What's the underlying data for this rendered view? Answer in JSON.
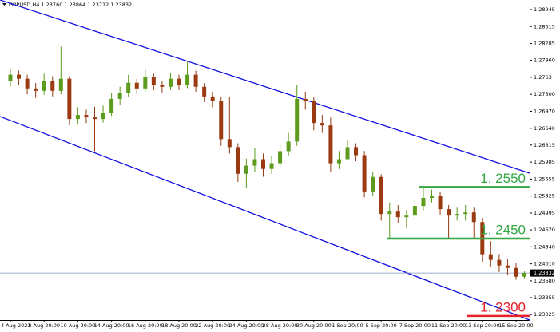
{
  "chart_data": {
    "type": "candlestick",
    "title": "GBPUSD,H4  1.23760 1.23864 1.23712 1.23832",
    "categories": [
      "4 Aug 2023",
      null,
      null,
      null,
      "8 Aug 20:00",
      null,
      null,
      null,
      "10 Aug 20:00",
      null,
      null,
      null,
      "14 Aug 20:00",
      null,
      null,
      null,
      "16 Aug 20:00",
      null,
      null,
      null,
      "18 Aug 20:00",
      null,
      null,
      null,
      "22 Aug 20:00",
      null,
      null,
      null,
      "24 Aug 20:00",
      null,
      null,
      null,
      "28 Aug 20:00",
      null,
      null,
      null,
      "30 Aug 20:00",
      null,
      null,
      null,
      "1 Sep 20:00",
      null,
      null,
      null,
      "5 Sep 20:00",
      null,
      null,
      null,
      "7 Sep 20:00",
      null,
      null,
      null,
      "11 Sep 20:00",
      null,
      null,
      null,
      "13 Sep 20:00",
      null,
      null,
      null,
      "15 Sep 20:00",
      null
    ],
    "open": [
      1.2756,
      1.2768,
      1.27602,
      1.27414,
      1.27367,
      1.27555,
      1.27367,
      1.27602,
      1.26821,
      1.26899,
      1.26852,
      1.26821,
      1.26946,
      1.27211,
      1.2732,
      1.27524,
      1.27414,
      1.27633,
      1.27477,
      1.27445,
      1.27602,
      1.27477,
      1.2768,
      1.27445,
      1.27258,
      1.27164,
      1.2643,
      1.26274,
      1.25758,
      1.25915,
      1.2604,
      1.25852,
      1.25962,
      1.26196,
      1.26383,
      1.27211,
      1.27164,
      1.26743,
      1.26696,
      1.25962,
      1.2604,
      1.26274,
      1.26118,
      1.25415,
      1.25696,
      1.24977,
      1.25024,
      1.24915,
      1.24946,
      1.25133,
      1.2529,
      1.25336,
      1.25071,
      1.24946,
      1.24977,
      1.25008,
      1.24821,
      1.24196,
      1.24087,
      1.23978,
      1.23931,
      1.2376
    ],
    "high": [
      1.2779,
      1.2776,
      1.2768,
      1.2752,
      1.277,
      1.2765,
      1.28226,
      1.2765,
      1.2705,
      1.27,
      1.2706,
      1.2708,
      1.2732,
      1.2745,
      1.2768,
      1.276,
      1.2778,
      1.277,
      1.2756,
      1.2772,
      1.2768,
      1.27945,
      1.2776,
      1.2752,
      1.2735,
      1.2725,
      1.2725,
      1.2635,
      1.2605,
      1.2625,
      1.2615,
      1.261,
      1.2633,
      1.2655,
      1.27477,
      1.2735,
      1.2725,
      1.269,
      1.2685,
      1.262,
      1.264,
      1.2635,
      1.262,
      1.258,
      1.2575,
      1.252,
      1.2515,
      1.2505,
      1.2525,
      1.255,
      1.2545,
      1.254,
      1.2515,
      1.251,
      1.2515,
      1.251,
      1.249,
      1.2445,
      1.242,
      1.241,
      1.2402,
      1.23864
    ],
    "low": [
      1.2745,
      1.2748,
      1.273,
      1.2723,
      1.2729,
      1.2726,
      1.273,
      1.267,
      1.2672,
      1.2674,
      1.26196,
      1.2675,
      1.2688,
      1.271,
      1.2725,
      1.273,
      1.2735,
      1.2738,
      1.2732,
      1.2738,
      1.2738,
      1.2742,
      1.2735,
      1.2715,
      1.2705,
      1.263,
      1.2615,
      1.256,
      1.2548,
      1.258,
      1.257,
      1.2575,
      1.2588,
      1.261,
      1.263,
      1.27,
      1.266,
      1.2655,
      1.258,
      1.2585,
      1.261,
      1.26,
      1.253,
      1.2533,
      1.2485,
      1.245,
      1.248,
      1.247,
      1.2485,
      1.2505,
      1.252,
      1.2495,
      1.245,
      1.2485,
      1.2485,
      1.245,
      1.2405,
      1.2395,
      1.2385,
      1.238,
      1.237,
      1.23712
    ],
    "close": [
      1.2768,
      1.27602,
      1.27414,
      1.27367,
      1.27555,
      1.27367,
      1.27602,
      1.26821,
      1.26899,
      1.26852,
      1.26821,
      1.26946,
      1.27211,
      1.2732,
      1.27524,
      1.27414,
      1.27633,
      1.27477,
      1.27445,
      1.27602,
      1.27477,
      1.2768,
      1.27445,
      1.27258,
      1.27164,
      1.2643,
      1.26274,
      1.25758,
      1.25915,
      1.2604,
      1.25852,
      1.25962,
      1.26196,
      1.26383,
      1.27211,
      1.27164,
      1.26743,
      1.26696,
      1.25962,
      1.2604,
      1.26274,
      1.26118,
      1.25415,
      1.25696,
      1.24977,
      1.25024,
      1.24915,
      1.24946,
      1.25133,
      1.2529,
      1.25336,
      1.25071,
      1.24946,
      1.24977,
      1.25008,
      1.24821,
      1.24196,
      1.24087,
      1.23978,
      1.23931,
      1.2376,
      1.23832
    ],
    "up_color": "#5c9b1c",
    "down_color": "#9a3a10",
    "ylim": [
      1.2292,
      1.2913
    ],
    "yticks": [
      1.28945,
      1.28615,
      1.28285,
      {
        "value": 1.2796,
        "label": "1.27960"
      },
      1.2763,
      {
        "value": 1.273,
        "label": "1.27300"
      },
      {
        "value": 1.2697,
        "label": "1.26970"
      },
      {
        "value": 1.2664,
        "label": "1.26640"
      },
      1.26315,
      1.25985,
      1.25655,
      1.25325,
      1.24995,
      {
        "value": 1.2467,
        "label": "1.24670"
      },
      {
        "value": 1.2434,
        "label": "1.24340"
      },
      {
        "value": 1.2401,
        "label": "1.24010"
      },
      {
        "value": 1.2368,
        "label": "1.23680"
      },
      1.23355,
      1.23025
    ],
    "last_price": 1.23832,
    "channel": {
      "color": "#1010e0",
      "upper": [
        1.2913,
        1.2577
      ],
      "lower": [
        1.2687,
        1.2292
      ]
    },
    "levels": [
      {
        "value": 1.255,
        "label": "1. 2550",
        "color": "#33a843"
      },
      {
        "value": 1.245,
        "label": "1. 2450",
        "color": "#33a843"
      },
      {
        "value": 1.23,
        "label": "1. 2300",
        "color": "#e8202a"
      }
    ]
  }
}
